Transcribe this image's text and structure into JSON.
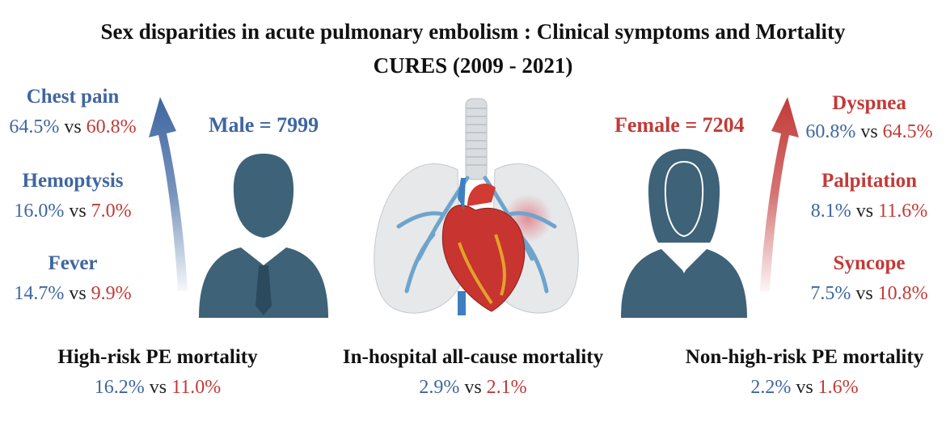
{
  "title": {
    "line1": "Sex disparities in acute pulmonary embolism : Clinical symptoms and Mortality",
    "line2": "CURES (2009 - 2021)"
  },
  "colors": {
    "male": "#3f66a0",
    "female": "#c23a38",
    "silhouette": "#3e6278"
  },
  "male": {
    "count_label": "Male = 7999",
    "symptoms": [
      {
        "name": "Chest pain",
        "male": "64.5%",
        "vs": "vs",
        "female": "60.8%"
      },
      {
        "name": "Hemoptysis",
        "male": "16.0%",
        "vs": "vs",
        "female": "7.0%"
      },
      {
        "name": "Fever",
        "male": "14.7%",
        "vs": "vs",
        "female": "9.9%"
      }
    ]
  },
  "female": {
    "count_label": "Female = 7204",
    "symptoms": [
      {
        "name": "Dyspnea",
        "male": "60.8%",
        "vs": "vs",
        "female": "64.5%"
      },
      {
        "name": "Palpitation",
        "male": "8.1%",
        "vs": "vs",
        "female": "11.6%"
      },
      {
        "name": "Syncope",
        "male": "7.5%",
        "vs": "vs",
        "female": "10.8%"
      }
    ]
  },
  "mortality": [
    {
      "label": "High-risk PE  mortality",
      "male": "16.2%",
      "vs": "vs",
      "female": "11.0%"
    },
    {
      "label": "In-hospital all-cause mortality",
      "male": "2.9%",
      "vs": "vs",
      "female": "2.1%"
    },
    {
      "label": "Non-high-risk PE  mortality",
      "male": "2.2%",
      "vs": "vs",
      "female": "1.6%"
    }
  ],
  "icons": [
    "male-silhouette-icon",
    "female-silhouette-icon",
    "lungs-heart-icon",
    "up-arrow-icon"
  ]
}
